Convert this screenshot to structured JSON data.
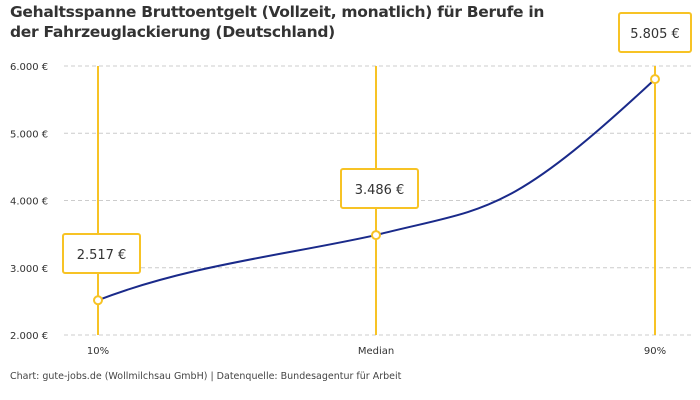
{
  "chart_data": {
    "type": "line",
    "title": "Gehaltsspanne Bruttoentgelt (Vollzeit, monatlich) für Berufe in der Fahrzeuglackierung (Deutschland)",
    "categories": [
      "10%",
      "Median",
      "90%"
    ],
    "values": [
      2517,
      3486,
      5805
    ],
    "data_labels": [
      "2.517 €",
      "3.486 €",
      "5.805 €"
    ],
    "xlabel": "",
    "ylabel": "",
    "ylim": [
      2000,
      6000
    ],
    "yticks": [
      2000,
      3000,
      4000,
      5000,
      6000
    ],
    "ytick_labels": [
      "2.000 €",
      "3.000 €",
      "4.000 €",
      "5.000 €",
      "6.000 €"
    ],
    "grid": "horizontal dashed",
    "legend": "none",
    "colors": {
      "line": "#1a2a8a",
      "marker": "#f7c325",
      "grid": "#cccccc"
    }
  },
  "footer": "Chart: gute-jobs.de (Wollmilchsau GmbH) | Datenquelle: Bundesagentur für Arbeit"
}
